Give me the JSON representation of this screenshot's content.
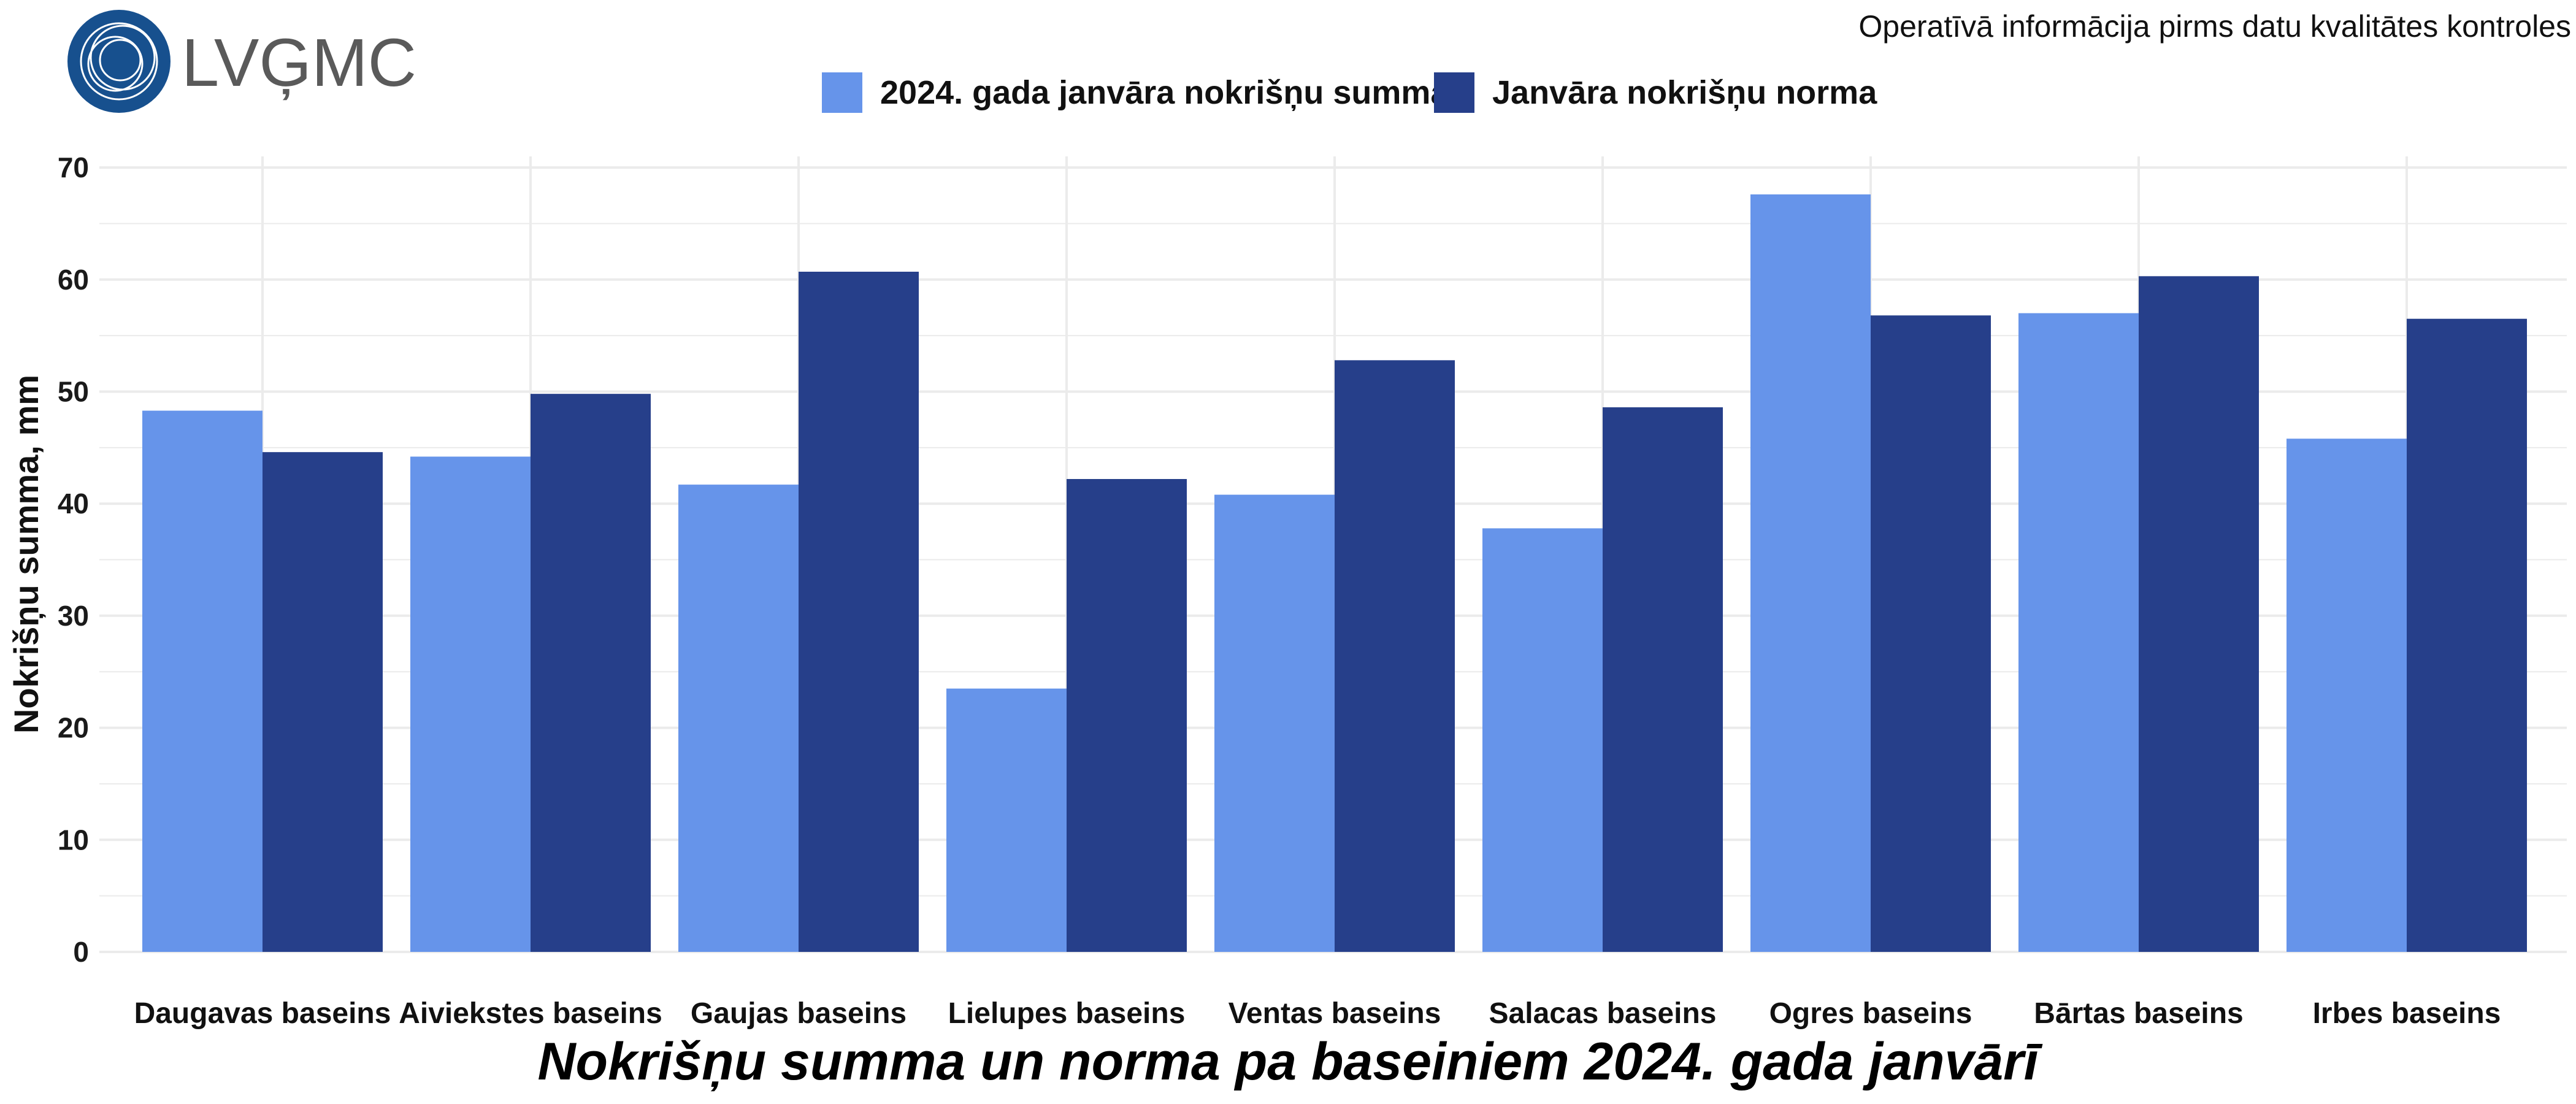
{
  "header": {
    "logo_text": "LVĢMC",
    "notice": "Operatīvā informācija pirms datu kvalitātes kontroles"
  },
  "colors": {
    "series_actual": "#6694EA",
    "series_norm": "#263F8A",
    "logo_blue": "#17508E",
    "logo_text": "#5A5A5A",
    "grid": "#EBEBEB"
  },
  "chart_data": {
    "type": "bar",
    "title": "Nokrišņu summa un norma pa baseiniem 2024. gada janvārī",
    "xlabel": "",
    "ylabel": "Nokrišņu summa, mm",
    "ylim": [
      0,
      70
    ],
    "yticks": [
      "0",
      "10",
      "20",
      "30",
      "40",
      "50",
      "60",
      "70"
    ],
    "grid": true,
    "legend_position": "top",
    "categories": [
      "Daugavas baseins",
      "Aiviekstes baseins",
      "Gaujas baseins",
      "Lielupes baseins",
      "Ventas baseins",
      "Salacas baseins",
      "Ogres baseins",
      "Bārtas baseins",
      "Irbes baseins"
    ],
    "series": [
      {
        "name": "2024. gada janvāra nokrišņu summa",
        "color": "#6694EA",
        "values": [
          48.3,
          44.2,
          41.7,
          23.5,
          40.8,
          37.8,
          67.6,
          57.0,
          45.8
        ]
      },
      {
        "name": "Janvāra nokrišņu norma",
        "color": "#263F8A",
        "values": [
          44.6,
          49.8,
          60.7,
          42.2,
          52.8,
          48.6,
          56.8,
          60.3,
          56.5
        ]
      }
    ]
  }
}
